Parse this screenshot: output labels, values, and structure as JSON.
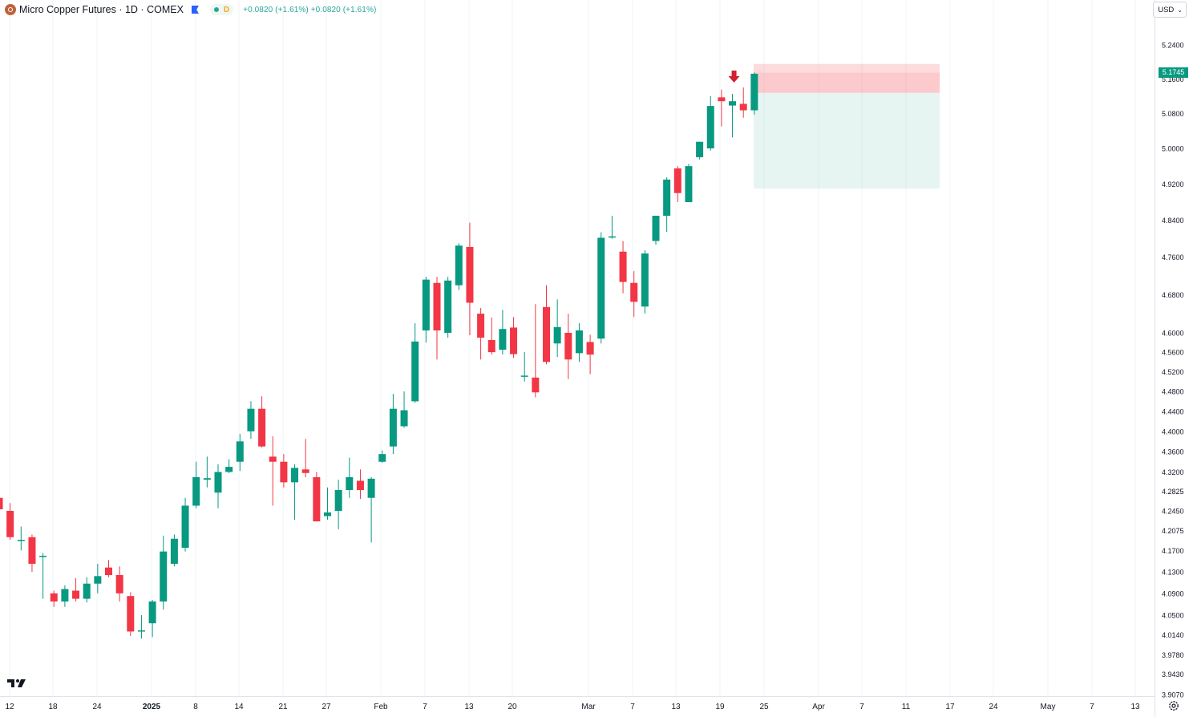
{
  "header": {
    "symbol_title": "Micro Copper Futures · 1D · COMEX",
    "status_letter": "D",
    "change_1": "+0.0820 (+1.61%)",
    "change_2": "+0.0820 (+1.61%)"
  },
  "currency_selector": {
    "label": "USD"
  },
  "price_axis": {
    "labels": [
      "5.2400",
      "5.1600",
      "5.0800",
      "5.0000",
      "4.9200",
      "4.8400",
      "4.7600",
      "4.6800",
      "4.6000",
      "4.5600",
      "4.5200",
      "4.4800",
      "4.4400",
      "4.4000",
      "4.3600",
      "4.3200",
      "4.2825",
      "4.2450",
      "4.2075",
      "4.1700",
      "4.1300",
      "4.0900",
      "4.0500",
      "4.0140",
      "3.9780",
      "3.9430",
      "3.9070"
    ],
    "last_price": "5.1745"
  },
  "time_axis": {
    "labels": [
      "12",
      "18",
      "24",
      "2025",
      "8",
      "14",
      "21",
      "27",
      "Feb",
      "7",
      "13",
      "20",
      "Mar",
      "7",
      "13",
      "19",
      "25",
      "Apr",
      "7",
      "11",
      "17",
      "24",
      "May",
      "7",
      "13"
    ]
  },
  "colors": {
    "up": "#089981",
    "down": "#f23645",
    "last_price": "#089981"
  },
  "chart_data": {
    "type": "candlestick",
    "title": "Micro Copper Futures · 1D · COMEX",
    "candles": [
      {
        "o": 4.27,
        "h": 4.335,
        "l": 4.23,
        "c": 4.248
      },
      {
        "o": 4.245,
        "h": 4.26,
        "l": 4.19,
        "c": 4.195
      },
      {
        "o": 4.19,
        "h": 4.215,
        "l": 4.17,
        "c": 4.19
      },
      {
        "o": 4.195,
        "h": 4.2,
        "l": 4.13,
        "c": 4.145
      },
      {
        "o": 4.16,
        "h": 4.165,
        "l": 4.08,
        "c": 4.16
      },
      {
        "o": 4.09,
        "h": 4.095,
        "l": 4.065,
        "c": 4.075
      },
      {
        "o": 4.075,
        "h": 4.105,
        "l": 4.065,
        "c": 4.098
      },
      {
        "o": 4.095,
        "h": 4.118,
        "l": 4.075,
        "c": 4.08
      },
      {
        "o": 4.08,
        "h": 4.12,
        "l": 4.073,
        "c": 4.108
      },
      {
        "o": 4.108,
        "h": 4.145,
        "l": 4.09,
        "c": 4.122
      },
      {
        "o": 4.138,
        "h": 4.152,
        "l": 4.12,
        "c": 4.124
      },
      {
        "o": 4.124,
        "h": 4.14,
        "l": 4.075,
        "c": 4.09
      },
      {
        "o": 4.085,
        "h": 4.092,
        "l": 4.012,
        "c": 4.02
      },
      {
        "o": 4.02,
        "h": 4.05,
        "l": 4.007,
        "c": 4.022
      },
      {
        "o": 4.035,
        "h": 4.078,
        "l": 4.01,
        "c": 4.075
      },
      {
        "o": 4.075,
        "h": 4.198,
        "l": 4.06,
        "c": 4.168
      },
      {
        "o": 4.145,
        "h": 4.2,
        "l": 4.14,
        "c": 4.192
      },
      {
        "o": 4.175,
        "h": 4.27,
        "l": 4.168,
        "c": 4.255
      },
      {
        "o": 4.255,
        "h": 4.34,
        "l": 4.25,
        "c": 4.31
      },
      {
        "o": 4.305,
        "h": 4.35,
        "l": 4.29,
        "c": 4.308
      },
      {
        "o": 4.28,
        "h": 4.335,
        "l": 4.25,
        "c": 4.32
      },
      {
        "o": 4.32,
        "h": 4.345,
        "l": 4.318,
        "c": 4.33
      },
      {
        "o": 4.34,
        "h": 4.395,
        "l": 4.322,
        "c": 4.38
      },
      {
        "o": 4.4,
        "h": 4.46,
        "l": 4.385,
        "c": 4.445
      },
      {
        "o": 4.445,
        "h": 4.47,
        "l": 4.368,
        "c": 4.37
      },
      {
        "o": 4.35,
        "h": 4.39,
        "l": 4.255,
        "c": 4.34
      },
      {
        "o": 4.34,
        "h": 4.355,
        "l": 4.29,
        "c": 4.3
      },
      {
        "o": 4.3,
        "h": 4.335,
        "l": 4.228,
        "c": 4.328
      },
      {
        "o": 4.325,
        "h": 4.385,
        "l": 4.31,
        "c": 4.318
      },
      {
        "o": 4.31,
        "h": 4.32,
        "l": 4.225,
        "c": 4.225
      },
      {
        "o": 4.235,
        "h": 4.29,
        "l": 4.228,
        "c": 4.242
      },
      {
        "o": 4.245,
        "h": 4.305,
        "l": 4.21,
        "c": 4.285
      },
      {
        "o": 4.285,
        "h": 4.348,
        "l": 4.27,
        "c": 4.31
      },
      {
        "o": 4.303,
        "h": 4.325,
        "l": 4.268,
        "c": 4.285
      },
      {
        "o": 4.27,
        "h": 4.31,
        "l": 4.185,
        "c": 4.307
      },
      {
        "o": 4.34,
        "h": 4.362,
        "l": 4.338,
        "c": 4.355
      },
      {
        "o": 4.37,
        "h": 4.475,
        "l": 4.355,
        "c": 4.445
      },
      {
        "o": 4.41,
        "h": 4.48,
        "l": 4.407,
        "c": 4.442
      },
      {
        "o": 4.46,
        "h": 4.62,
        "l": 4.457,
        "c": 4.582
      },
      {
        "o": 4.605,
        "h": 4.718,
        "l": 4.58,
        "c": 4.712
      },
      {
        "o": 4.705,
        "h": 4.718,
        "l": 4.545,
        "c": 4.605
      },
      {
        "o": 4.6,
        "h": 4.718,
        "l": 4.59,
        "c": 4.71
      },
      {
        "o": 4.7,
        "h": 4.79,
        "l": 4.69,
        "c": 4.785
      },
      {
        "o": 4.782,
        "h": 4.835,
        "l": 4.595,
        "c": 4.663
      },
      {
        "o": 4.64,
        "h": 4.652,
        "l": 4.545,
        "c": 4.59
      },
      {
        "o": 4.585,
        "h": 4.632,
        "l": 4.555,
        "c": 4.56
      },
      {
        "o": 4.565,
        "h": 4.648,
        "l": 4.555,
        "c": 4.608
      },
      {
        "o": 4.611,
        "h": 4.633,
        "l": 4.548,
        "c": 4.556
      },
      {
        "o": 4.512,
        "h": 4.56,
        "l": 4.5,
        "c": 4.512
      },
      {
        "o": 4.508,
        "h": 4.66,
        "l": 4.468,
        "c": 4.478
      },
      {
        "o": 4.654,
        "h": 4.7,
        "l": 4.535,
        "c": 4.54
      },
      {
        "o": 4.578,
        "h": 4.67,
        "l": 4.55,
        "c": 4.612
      },
      {
        "o": 4.6,
        "h": 4.64,
        "l": 4.505,
        "c": 4.545
      },
      {
        "o": 4.558,
        "h": 4.62,
        "l": 4.54,
        "c": 4.605
      },
      {
        "o": 4.581,
        "h": 4.596,
        "l": 4.515,
        "c": 4.555
      },
      {
        "o": 4.588,
        "h": 4.814,
        "l": 4.578,
        "c": 4.802
      },
      {
        "o": 4.803,
        "h": 4.85,
        "l": 4.8,
        "c": 4.805
      },
      {
        "o": 4.772,
        "h": 4.795,
        "l": 4.683,
        "c": 4.707
      },
      {
        "o": 4.705,
        "h": 4.73,
        "l": 4.633,
        "c": 4.665
      },
      {
        "o": 4.655,
        "h": 4.775,
        "l": 4.64,
        "c": 4.768
      },
      {
        "o": 4.795,
        "h": 4.85,
        "l": 4.787,
        "c": 4.85
      },
      {
        "o": 4.85,
        "h": 4.935,
        "l": 4.815,
        "c": 4.93
      },
      {
        "o": 4.955,
        "h": 4.96,
        "l": 4.88,
        "c": 4.9
      },
      {
        "o": 4.88,
        "h": 4.965,
        "l": 4.88,
        "c": 4.96
      },
      {
        "o": 4.98,
        "h": 5.015,
        "l": 4.975,
        "c": 5.015
      },
      {
        "o": 5.0,
        "h": 5.12,
        "l": 4.995,
        "c": 5.097
      },
      {
        "o": 5.117,
        "h": 5.135,
        "l": 5.05,
        "c": 5.108
      },
      {
        "o": 5.098,
        "h": 5.125,
        "l": 5.025,
        "c": 5.108
      },
      {
        "o": 5.102,
        "h": 5.14,
        "l": 5.07,
        "c": 5.087
      },
      {
        "o": 5.087,
        "h": 5.175,
        "l": 5.077,
        "c": 5.172
      }
    ],
    "position_tool": {
      "type": "short",
      "entry": 5.1275,
      "stop": 5.195,
      "target": 4.91
    },
    "signal": "sell-arrow",
    "ylim": [
      3.907,
      5.28
    ]
  }
}
